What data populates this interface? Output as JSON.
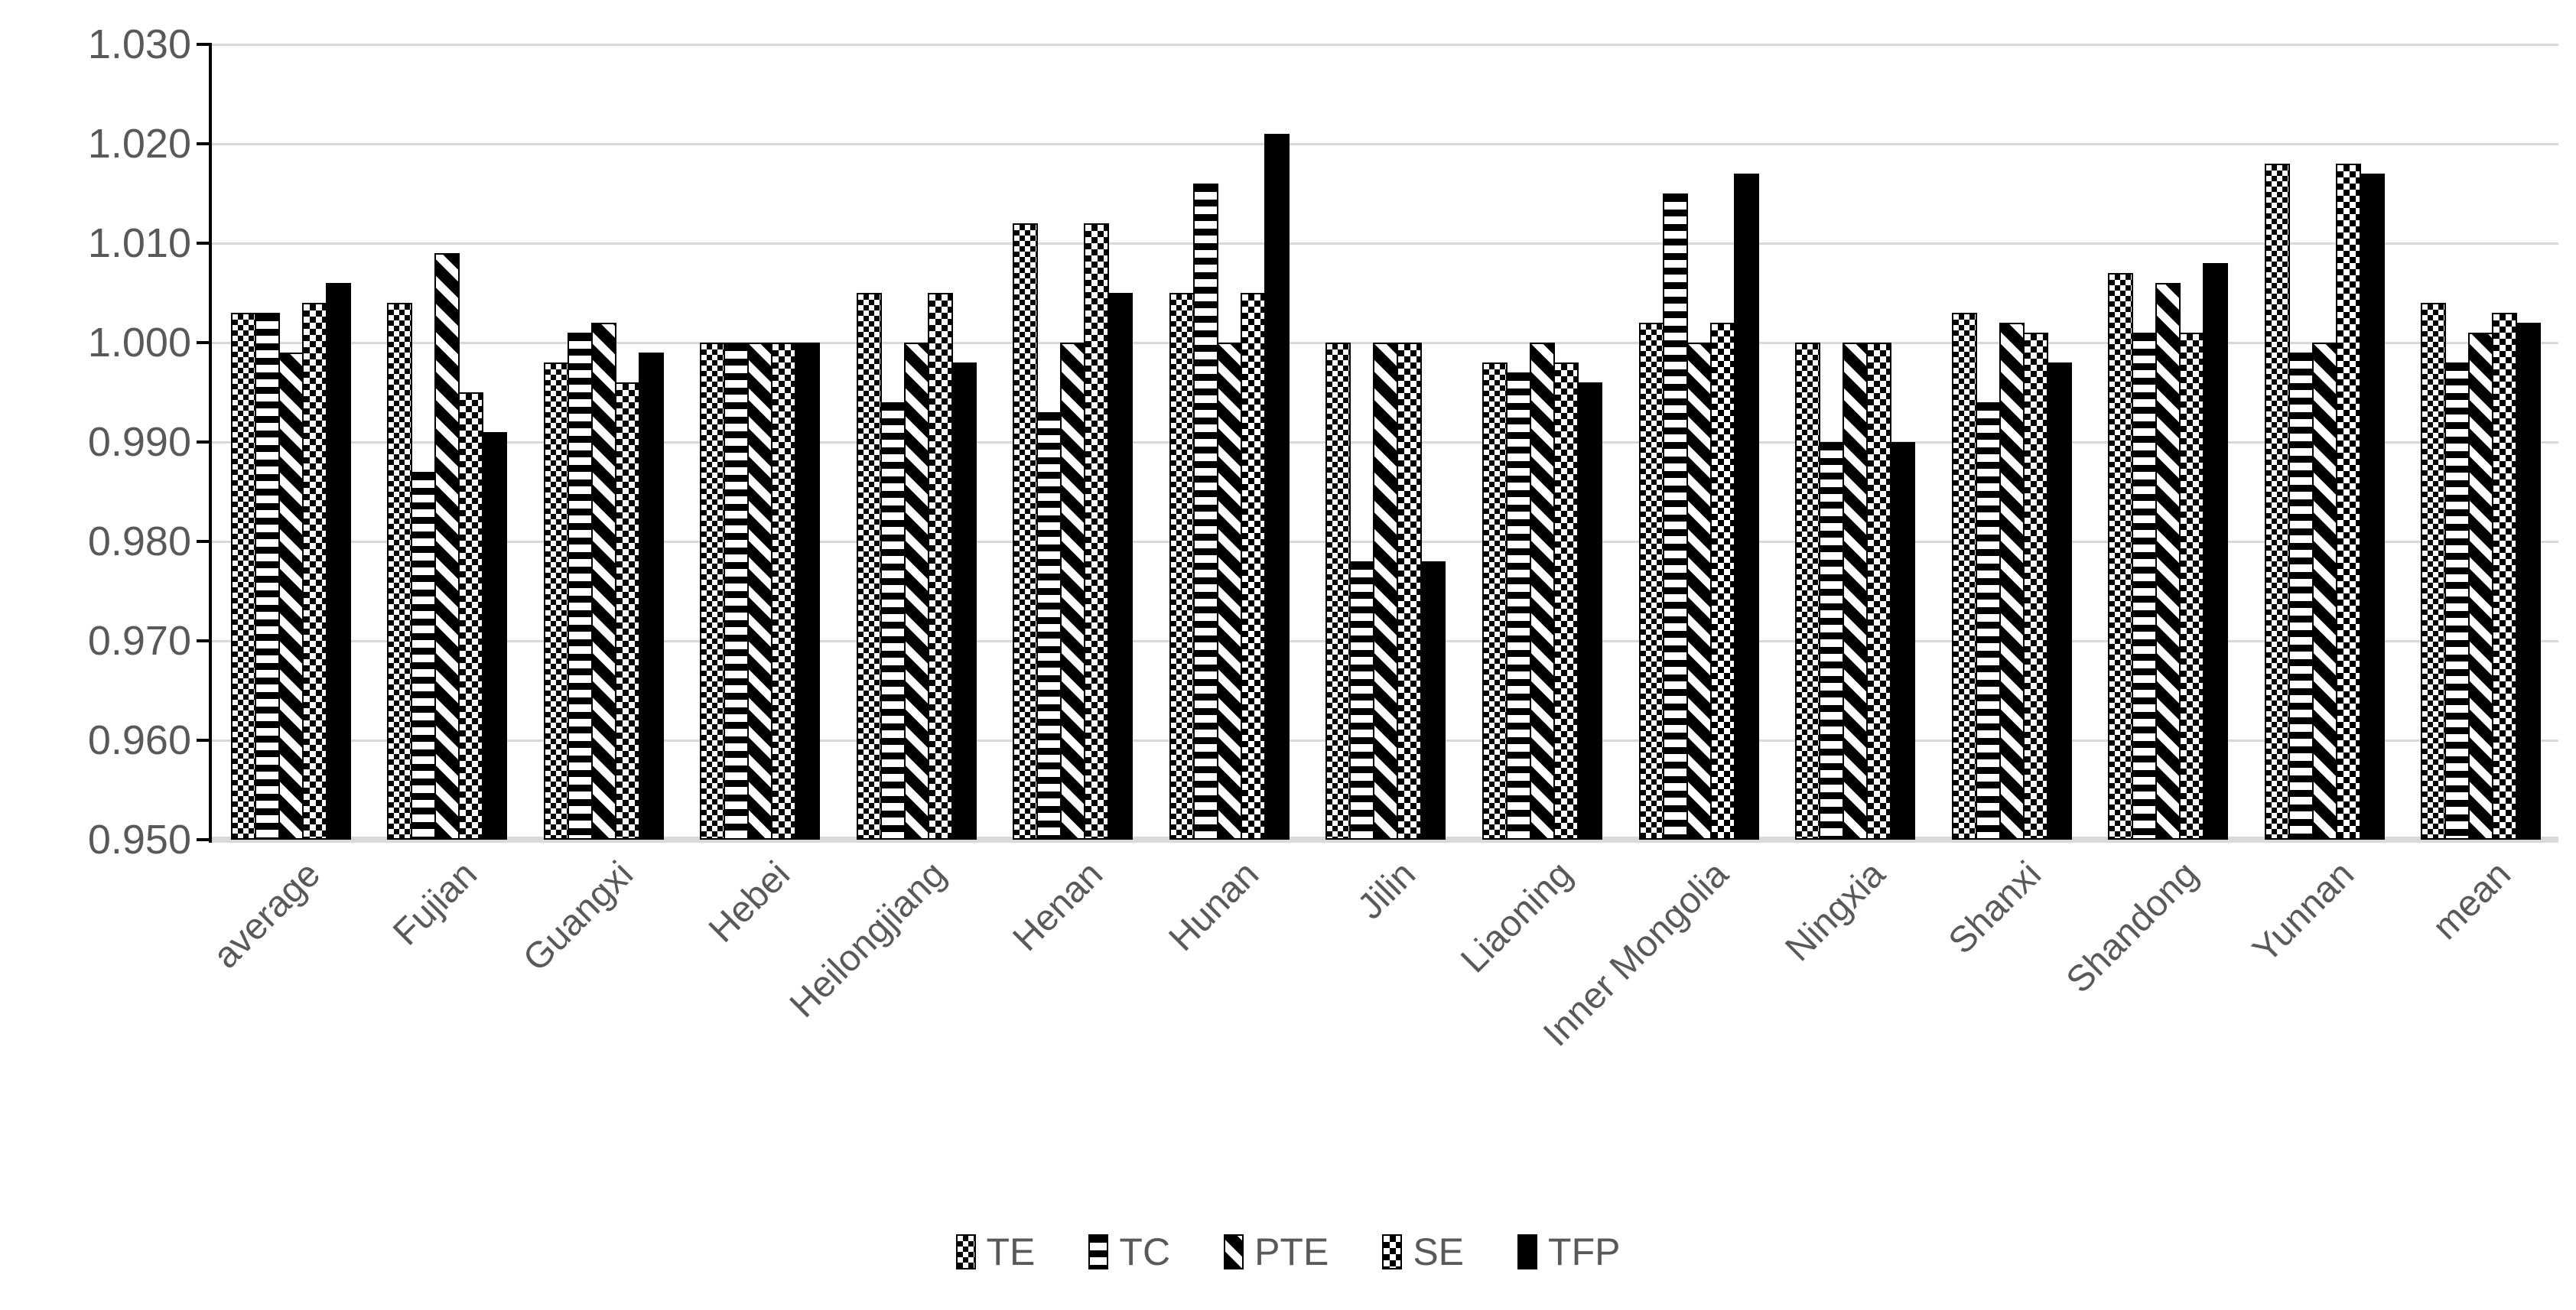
{
  "chart_data": {
    "type": "bar",
    "title": "",
    "categories": [
      "average",
      "Fujian",
      "Guangxi",
      "Hebei",
      "Heilongjiang",
      "Henan",
      "Hunan",
      "Jilin",
      "Liaoning",
      "Inner Mongolia",
      "Ningxia",
      "Shanxi",
      "Shandong",
      "Yunnan",
      "mean"
    ],
    "series": [
      {
        "name": "TE",
        "pattern": "diamond-checker",
        "values": [
          1.003,
          1.004,
          0.998,
          1.0,
          1.005,
          1.012,
          1.005,
          1.0,
          0.998,
          1.002,
          1.0,
          1.003,
          1.007,
          1.018,
          1.004
        ]
      },
      {
        "name": "TC",
        "pattern": "horizontal-stripes",
        "values": [
          1.003,
          0.987,
          1.001,
          1.0,
          0.994,
          0.993,
          1.016,
          0.978,
          0.997,
          1.015,
          0.99,
          0.994,
          1.001,
          0.999,
          0.998
        ]
      },
      {
        "name": "PTE",
        "pattern": "diagonal-stripes",
        "values": [
          0.999,
          1.009,
          1.002,
          1.0,
          1.0,
          1.0,
          1.0,
          1.0,
          1.0,
          1.0,
          1.0,
          1.002,
          1.006,
          1.0,
          1.001
        ]
      },
      {
        "name": "SE",
        "pattern": "square-checker",
        "values": [
          1.004,
          0.995,
          0.996,
          1.0,
          1.005,
          1.012,
          1.005,
          1.0,
          0.998,
          1.002,
          1.0,
          1.001,
          1.001,
          1.018,
          1.003
        ]
      },
      {
        "name": "TFP",
        "pattern": "solid",
        "values": [
          1.006,
          0.991,
          0.999,
          1.0,
          0.998,
          1.005,
          1.021,
          0.978,
          0.996,
          1.017,
          0.99,
          0.998,
          1.008,
          1.017,
          1.002
        ]
      }
    ],
    "xlabel": "",
    "ylabel": "",
    "ylim": [
      0.95,
      1.03
    ],
    "ytick_step": 0.01,
    "ytick_labels": [
      "1.030",
      "1.020",
      "1.010",
      "1.000",
      "0.990",
      "0.980",
      "0.970",
      "0.960",
      "0.950"
    ],
    "grid": true,
    "legend_position": "bottom",
    "legend_entries": [
      "TE",
      "TC",
      "PTE",
      "SE",
      "TFP"
    ]
  },
  "colors": {
    "bar_fill": "#000000",
    "bar_background": "#ffffff",
    "axis_text": "#595959",
    "gridline": "#d9d9d9",
    "axis_line": "#000000",
    "background": "#ffffff"
  }
}
